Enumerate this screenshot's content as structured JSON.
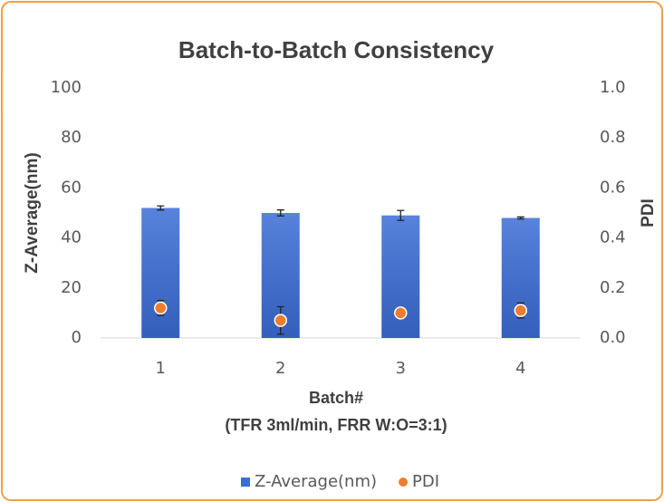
{
  "chart_data": {
    "type": "bar",
    "title": "Batch-to-Batch Consistency",
    "categories": [
      "1",
      "2",
      "3",
      "4"
    ],
    "xlabel": [
      "Batch#",
      "(TFR 3ml/min, FRR W:O=3:1)"
    ],
    "ylabel": "Z-Average(nm)",
    "y2label": "PDI",
    "ylim": [
      0,
      100
    ],
    "yticks": [
      0,
      20,
      40,
      60,
      80,
      100
    ],
    "y2lim": [
      0,
      1
    ],
    "y2ticks": [
      {
        "value": 0,
        "label": "0.0"
      },
      {
        "value": 0.2,
        "label": "0.2"
      },
      {
        "value": 0.4,
        "label": "0.4"
      },
      {
        "value": 0.6,
        "label": "0.6"
      },
      {
        "value": 0.8,
        "label": "0.8"
      },
      {
        "value": 1,
        "label": "1.0"
      }
    ],
    "grid": false,
    "legend": "bottom",
    "series": [
      {
        "name": "Z-Average(nm)",
        "type": "bar",
        "color": "#3b6dd6",
        "values": [
          52,
          50,
          49,
          48
        ],
        "errors": [
          0.8,
          1.2,
          2,
          0.4
        ]
      },
      {
        "name": "PDI",
        "type": "scatter",
        "axis": "y2",
        "color": "#ed7d31",
        "values": [
          0.12,
          0.07,
          0.1,
          0.11
        ],
        "errors": [
          0.03,
          0.055,
          0.02,
          0.03
        ]
      }
    ]
  }
}
